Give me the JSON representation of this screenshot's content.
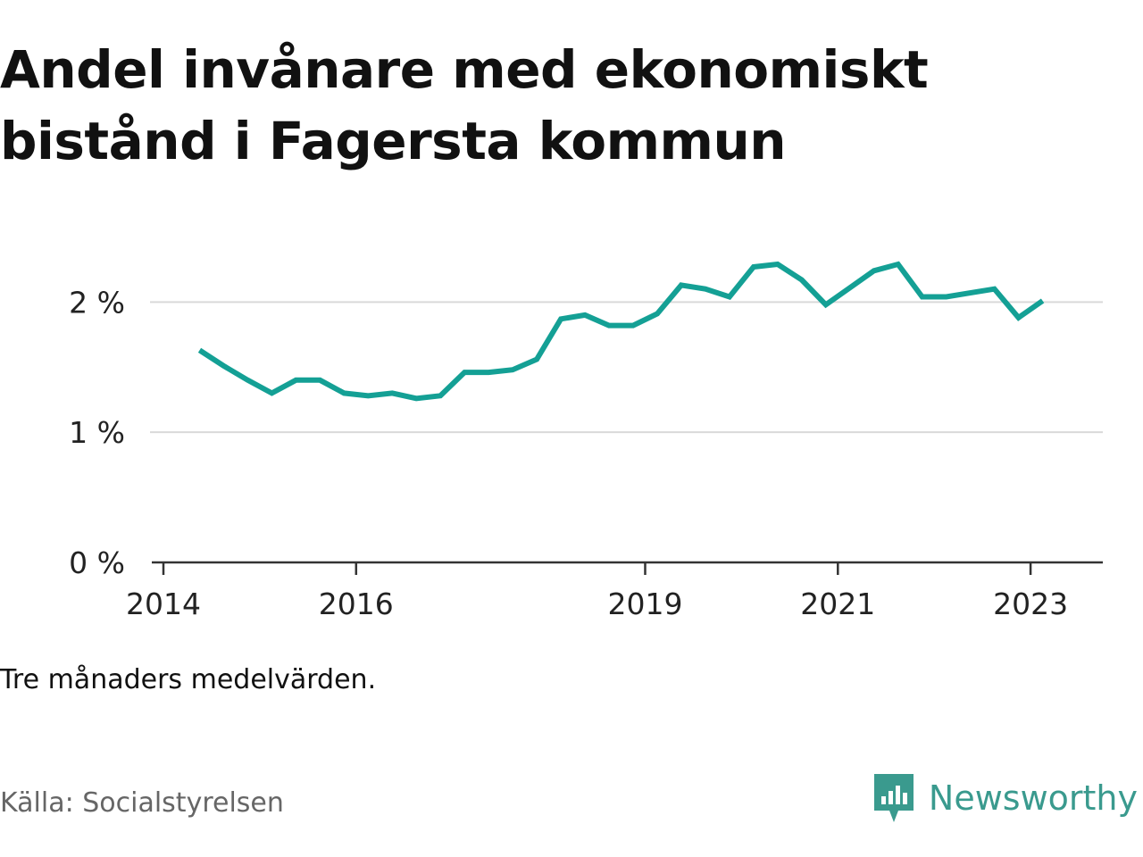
{
  "title": "Andel invånare med ekonomiskt bistånd i Fagersta kommun",
  "note": "Tre månaders medelvärden.",
  "source": "Källa: Socialstyrelsen",
  "brand": {
    "name": "Newsworthy",
    "icon": "bar-chart-speech-bubble-icon",
    "color": "#3a9a8e"
  },
  "chart_data": {
    "type": "line",
    "xlabel": "",
    "ylabel": "",
    "ylim": [
      0,
      2.4
    ],
    "xlim": [
      2014.0,
      2023.75
    ],
    "y_ticks": [
      {
        "value": 0,
        "label": "0 %"
      },
      {
        "value": 1,
        "label": "1 %"
      },
      {
        "value": 2,
        "label": "2 %"
      }
    ],
    "x_ticks": [
      {
        "value": 2014,
        "label": "2014"
      },
      {
        "value": 2016,
        "label": "2016"
      },
      {
        "value": 2019,
        "label": "2019"
      },
      {
        "value": 2021,
        "label": "2021"
      },
      {
        "value": 2023,
        "label": "2023"
      }
    ],
    "grid": true,
    "line_color": "#14a095",
    "series": [
      {
        "x": [
          "2014-Q2",
          "2014-Q3",
          "2014-Q4",
          "2015-Q1",
          "2015-Q2",
          "2015-Q3",
          "2015-Q4",
          "2016-Q1",
          "2016-Q2",
          "2016-Q3",
          "2016-Q4",
          "2017-Q1",
          "2017-Q2",
          "2017-Q3",
          "2017-Q4",
          "2018-Q1",
          "2018-Q2",
          "2018-Q3",
          "2018-Q4",
          "2019-Q1",
          "2019-Q2",
          "2019-Q3",
          "2019-Q4",
          "2020-Q1",
          "2020-Q2",
          "2020-Q3",
          "2020-Q4",
          "2021-Q1",
          "2021-Q2",
          "2021-Q3",
          "2021-Q4",
          "2022-Q1",
          "2022-Q2",
          "2022-Q3",
          "2022-Q4",
          "2023-Q1"
        ],
        "values": [
          1.63,
          1.51,
          1.4,
          1.3,
          1.4,
          1.4,
          1.3,
          1.28,
          1.3,
          1.26,
          1.28,
          1.46,
          1.46,
          1.48,
          1.56,
          1.87,
          1.9,
          1.82,
          1.82,
          1.91,
          2.13,
          2.1,
          2.04,
          2.27,
          2.29,
          2.17,
          1.98,
          2.11,
          2.24,
          2.29,
          2.04,
          2.04,
          2.07,
          2.1,
          1.88,
          2.01
        ]
      }
    ]
  }
}
